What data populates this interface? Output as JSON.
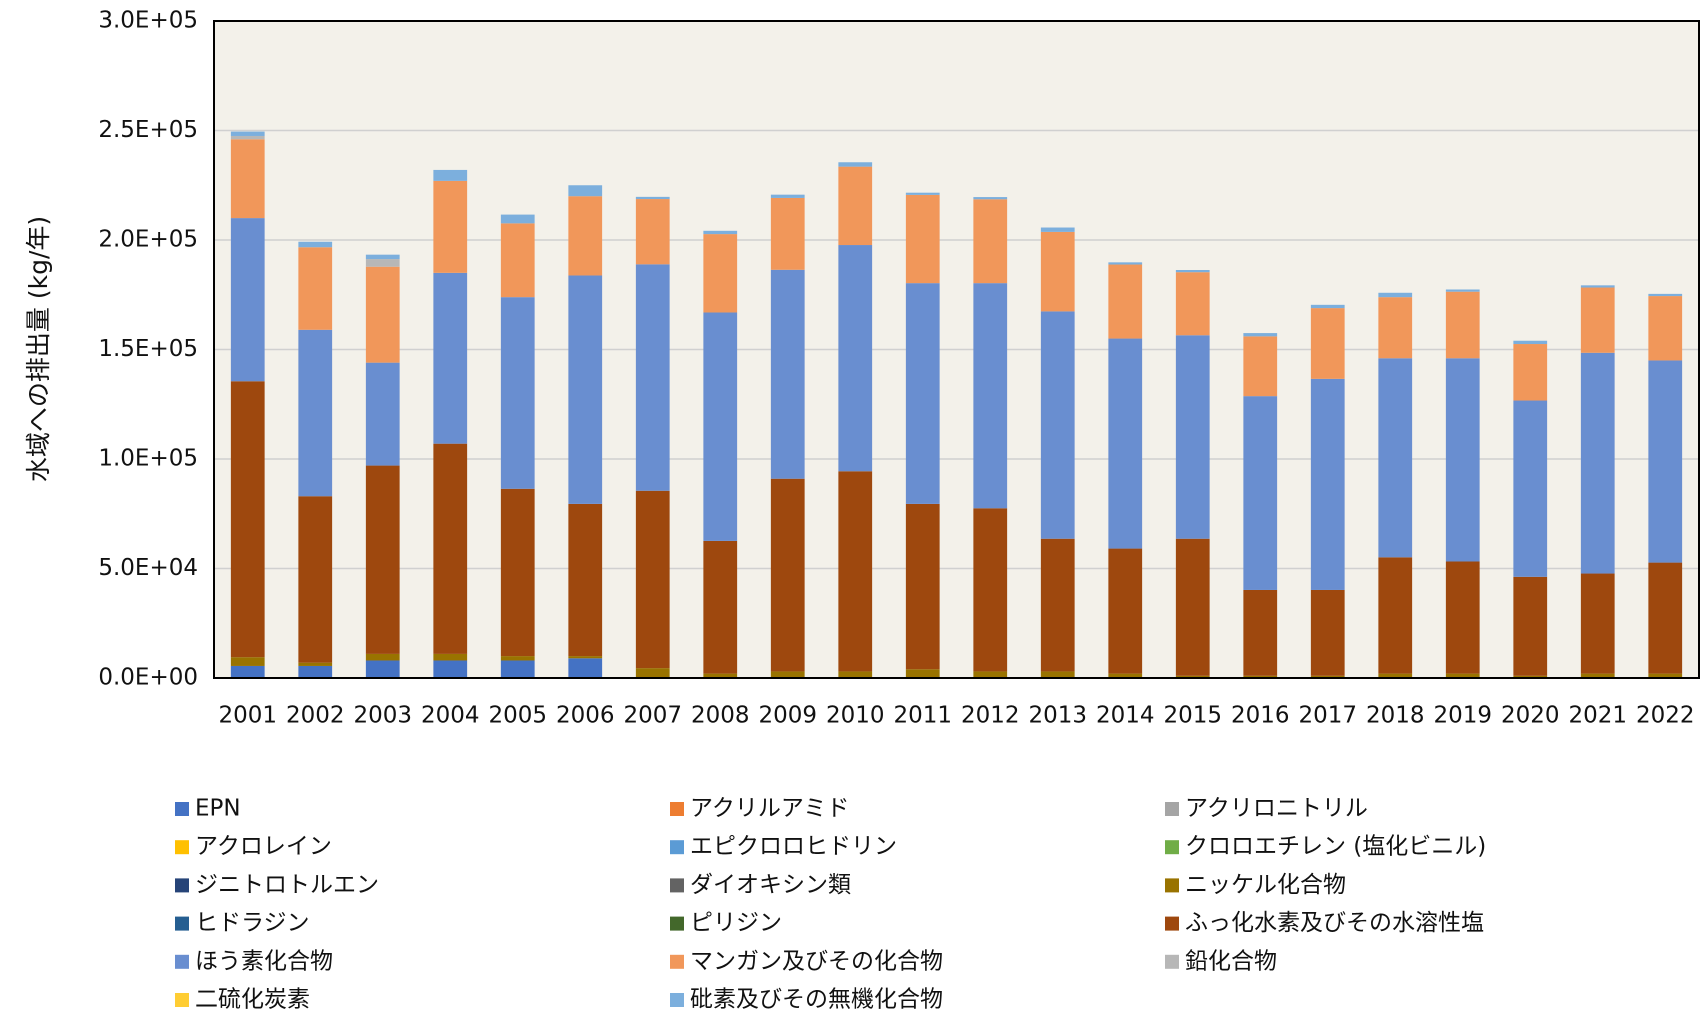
{
  "chart_data": {
    "type": "stacked_bar",
    "ylabel": "水域への排出量 (kg/年)",
    "categories": [
      "2001",
      "2002",
      "2003",
      "2004",
      "2005",
      "2006",
      "2007",
      "2008",
      "2009",
      "2010",
      "2011",
      "2012",
      "2013",
      "2014",
      "2015",
      "2016",
      "2017",
      "2018",
      "2019",
      "2020",
      "2021",
      "2022"
    ],
    "ylim": [
      0,
      300000
    ],
    "yticks": [
      {
        "value": 0,
        "label": "0.0E+00"
      },
      {
        "value": 50000,
        "label": "5.0E+04"
      },
      {
        "value": 100000,
        "label": "1.0E+05"
      },
      {
        "value": 150000,
        "label": "1.5E+05"
      },
      {
        "value": 200000,
        "label": "2.0E+05"
      },
      {
        "value": 250000,
        "label": "2.5E+05"
      },
      {
        "value": 300000,
        "label": "3.0E+05"
      }
    ],
    "grid": true,
    "series": [
      {
        "name": "EPN",
        "color": "#4472c4",
        "values": [
          5500,
          5500,
          8000,
          8000,
          8000,
          9000,
          0,
          0,
          0,
          0,
          0,
          0,
          0,
          0,
          0,
          0,
          0,
          0,
          0,
          0,
          0,
          0
        ]
      },
      {
        "name": "アクリルアミド",
        "color": "#ed7d31",
        "values": [
          0,
          0,
          0,
          0,
          0,
          0,
          0,
          0,
          0,
          0,
          0,
          0,
          0,
          0,
          0,
          0,
          0,
          0,
          0,
          0,
          0,
          0
        ]
      },
      {
        "name": "アクリロニトリル",
        "color": "#a5a5a5",
        "values": [
          0,
          0,
          0,
          0,
          0,
          0,
          0,
          0,
          0,
          0,
          0,
          0,
          0,
          0,
          0,
          0,
          0,
          0,
          0,
          0,
          0,
          0
        ]
      },
      {
        "name": "アクロレイン",
        "color": "#ffc000",
        "values": [
          0,
          0,
          0,
          0,
          0,
          0,
          0,
          0,
          0,
          0,
          0,
          0,
          0,
          0,
          0,
          0,
          0,
          0,
          0,
          0,
          0,
          0
        ]
      },
      {
        "name": "エピクロロヒドリン",
        "color": "#5b9bd5",
        "values": [
          0,
          0,
          0,
          0,
          0,
          0,
          0,
          0,
          0,
          0,
          0,
          0,
          0,
          0,
          0,
          0,
          0,
          0,
          0,
          0,
          0,
          0
        ]
      },
      {
        "name": "クロロエチレン (塩化ビニル)",
        "color": "#70ad47",
        "values": [
          0,
          0,
          0,
          0,
          0,
          0,
          0,
          0,
          0,
          0,
          0,
          0,
          0,
          0,
          0,
          0,
          0,
          0,
          0,
          0,
          0,
          0
        ]
      },
      {
        "name": "ジニトロトルエン",
        "color": "#264478",
        "values": [
          0,
          0,
          0,
          0,
          0,
          0,
          0,
          0,
          0,
          0,
          0,
          0,
          0,
          0,
          0,
          0,
          0,
          0,
          0,
          0,
          0,
          0
        ]
      },
      {
        "name": "ダイオキシン類",
        "color": "#636363",
        "values": [
          0,
          0,
          0,
          0,
          0,
          0,
          0,
          0,
          0,
          0,
          0,
          0,
          0,
          0,
          0,
          0,
          0,
          0,
          0,
          0,
          0,
          0
        ]
      },
      {
        "name": "ニッケル化合物",
        "color": "#997300",
        "values": [
          4000,
          1500,
          3000,
          3000,
          2000,
          1000,
          4500,
          2000,
          3000,
          3000,
          4000,
          3000,
          3000,
          2000,
          1000,
          1000,
          1000,
          2000,
          2000,
          1000,
          2000,
          2000
        ]
      },
      {
        "name": "ヒドラジン",
        "color": "#255e91",
        "values": [
          0,
          0,
          0,
          0,
          0,
          0,
          0,
          0,
          0,
          0,
          0,
          0,
          0,
          0,
          0,
          0,
          0,
          0,
          0,
          0,
          0,
          0
        ]
      },
      {
        "name": "ピリジン",
        "color": "#43682b",
        "values": [
          0,
          0,
          0,
          0,
          0,
          0,
          0,
          0,
          0,
          0,
          0,
          0,
          0,
          0,
          0,
          0,
          0,
          0,
          0,
          0,
          0,
          0
        ]
      },
      {
        "name": "ふっ化水素及びその水溶性塩",
        "color": "#9e480e",
        "values": [
          126000,
          76000,
          86000,
          96000,
          76400,
          69500,
          81000,
          60600,
          88000,
          91400,
          75500,
          74500,
          60600,
          57100,
          62600,
          39200,
          39200,
          53100,
          51200,
          45200,
          45700,
          50700
        ]
      },
      {
        "name": "ほう素化合物",
        "color": "#698ed0",
        "values": [
          74500,
          76000,
          47000,
          78000,
          87500,
          104300,
          103400,
          104300,
          95400,
          103300,
          100800,
          102800,
          103800,
          95900,
          92900,
          88500,
          96400,
          90900,
          92800,
          80500,
          100800,
          92300
        ]
      },
      {
        "name": "マンガン及びその化合物",
        "color": "#f1975a",
        "values": [
          36000,
          37700,
          43800,
          42000,
          33700,
          36200,
          29800,
          35800,
          32800,
          35800,
          40300,
          38300,
          36300,
          33800,
          28800,
          27300,
          32300,
          27900,
          30400,
          25800,
          29800,
          29400
        ]
      },
      {
        "name": "鉛化合物",
        "color": "#b7b7b7",
        "values": [
          1500,
          0,
          3500,
          0,
          0,
          0,
          0,
          0,
          0,
          0,
          0,
          0,
          0,
          0,
          0,
          0,
          0,
          0,
          0,
          0,
          0,
          0
        ]
      },
      {
        "name": "二硫化炭素",
        "color": "#ffcd33",
        "values": [
          0,
          0,
          0,
          0,
          0,
          0,
          0,
          0,
          0,
          0,
          0,
          0,
          0,
          0,
          0,
          0,
          0,
          0,
          0,
          0,
          0,
          0
        ]
      },
      {
        "name": "砒素及びその無機化合物",
        "color": "#7cafdd",
        "values": [
          2000,
          2500,
          2000,
          5000,
          4000,
          5000,
          1000,
          1500,
          1500,
          2000,
          1000,
          1000,
          2000,
          1000,
          1000,
          1500,
          1500,
          2000,
          1000,
          1500,
          1000,
          1000
        ]
      }
    ]
  }
}
